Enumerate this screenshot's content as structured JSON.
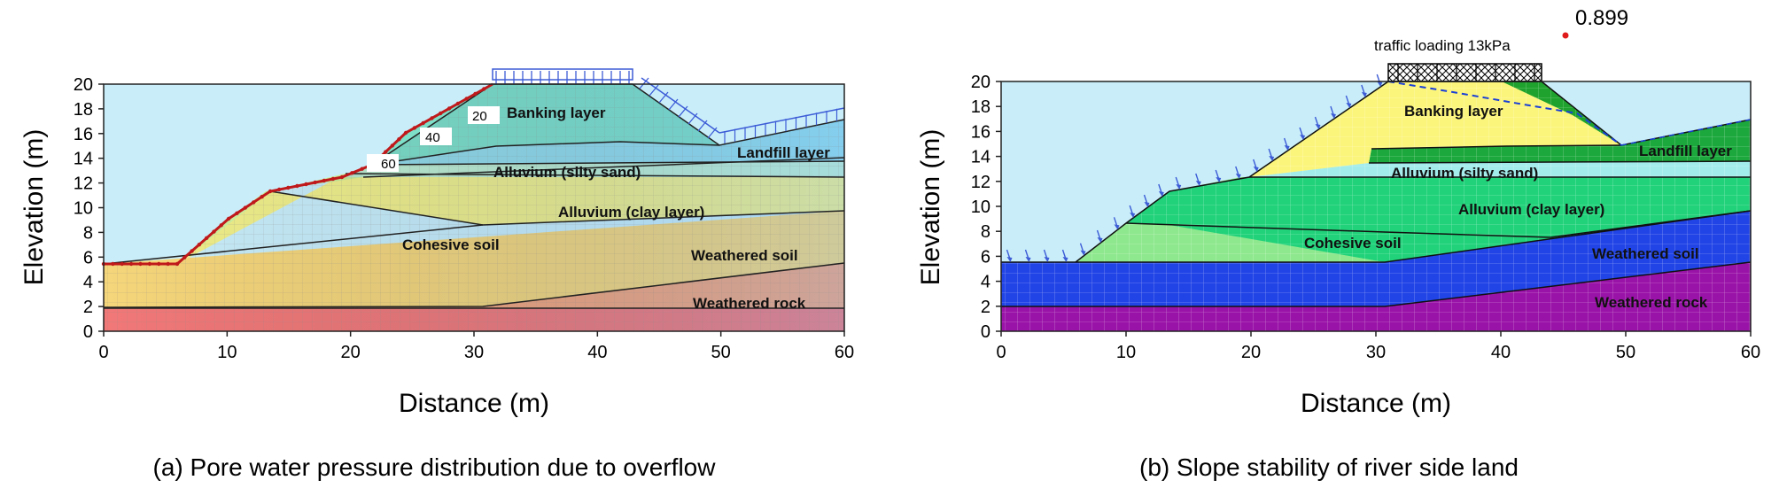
{
  "colors": {
    "water": "#c9eefa",
    "banking_a": "#7ee0c8",
    "landfill_a": "#93dbe8",
    "alluvium_sand_a": "#bfeed0",
    "alluvium_clay_a": "#c8ec9a",
    "cohesive_a": "#f2f08a",
    "weathered_soil_a": "#f6d67a",
    "weathered_rock_a": "#f4a47a",
    "bedrock_a": "#f27878",
    "banking_b": "#fbf57c",
    "landfill_b": "#1ca83c",
    "alluvium_sand_b": "#a2ecec",
    "alluvium_clay_b": "#21d27a",
    "cohesive_b": "#8ee88e",
    "weathered_soil_b": "#2144e6",
    "weathered_rock_b": "#9a13a8",
    "phreatic": "#c0191b",
    "load_arrow": "#3d5cd6",
    "critical_slip": "#1fa32e"
  },
  "panel_a": {
    "caption": "(a) Pore water pressure distribution due to overflow",
    "x_label": "Distance (m)",
    "y_label": "Elevation (m)",
    "x_ticks": [
      "0",
      "10",
      "20",
      "30",
      "40",
      "50",
      "60"
    ],
    "y_ticks": [
      "0",
      "2",
      "4",
      "6",
      "8",
      "10",
      "12",
      "14",
      "16",
      "18",
      "20"
    ],
    "layers": {
      "banking": "Banking layer",
      "landfill": "Landfill layer",
      "alluvium_sand": "Alluvium (silty sand)",
      "alluvium_clay": "Alluvium (clay layer)",
      "cohesive": "Cohesive soil",
      "weathered_soil": "Weathered soil",
      "weathered_rock": "Weathered rock"
    },
    "contour_labels": [
      "20",
      "40",
      "60"
    ]
  },
  "panel_b": {
    "caption": "(b) Slope stability of river side land",
    "x_label": "Distance (m)",
    "y_label": "Elevation (m)",
    "x_ticks": [
      "0",
      "10",
      "20",
      "30",
      "40",
      "50",
      "60"
    ],
    "y_ticks": [
      "0",
      "2",
      "4",
      "6",
      "8",
      "10",
      "12",
      "14",
      "16",
      "18",
      "20"
    ],
    "layers": {
      "banking": "Banking layer",
      "landfill": "Landfill layer",
      "alluvium_sand": "Alluvium (silty sand)",
      "alluvium_clay": "Alluvium (clay layer)",
      "cohesive": "Cohesive soil",
      "weathered_soil": "Weathered soil",
      "weathered_rock": "Weathered rock"
    },
    "load_label": "traffic loading 13kPa",
    "factor_of_safety": "0.899"
  }
}
